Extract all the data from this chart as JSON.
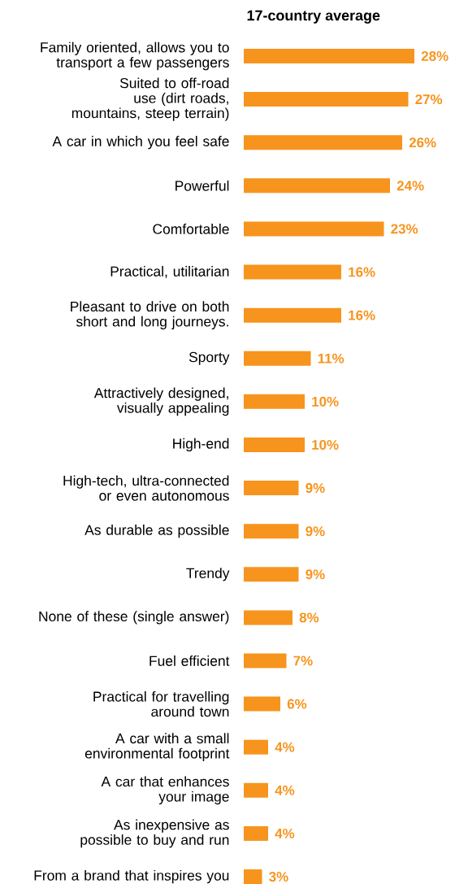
{
  "chart_data": {
    "type": "bar",
    "orientation": "horizontal",
    "title": "17-country average",
    "categories": [
      "Family oriented, allows you to transport a few passengers",
      "Suited to off-road use (dirt roads, mountains, steep terrain)",
      "A car in which you feel safe",
      "Powerful",
      "Comfortable",
      "Practical, utilitarian",
      "Pleasant to drive on both short and long journeys.",
      "Sporty",
      "Attractively designed, visually appealing",
      "High-end",
      "High-tech, ultra-connected or even autonomous",
      "As durable as possible",
      "Trendy",
      "None of these (single answer)",
      "Fuel efficient",
      "Practical for travelling around town",
      "A car with a small environmental footprint",
      "A car that enhances your image",
      "As inexpensive as possible to buy and run",
      "From a brand that inspires you"
    ],
    "values": [
      28,
      27,
      26,
      24,
      23,
      16,
      16,
      11,
      10,
      10,
      9,
      9,
      9,
      8,
      7,
      6,
      4,
      4,
      4,
      3
    ],
    "value_labels": [
      "28%",
      "27%",
      "26%",
      "24%",
      "23%",
      "16%",
      "16%",
      "11%",
      "10%",
      "10%",
      "9%",
      "9%",
      "9%",
      "8%",
      "7%",
      "6%",
      "4%",
      "4%",
      "4%",
      "3%"
    ],
    "color": "#f7941d"
  }
}
